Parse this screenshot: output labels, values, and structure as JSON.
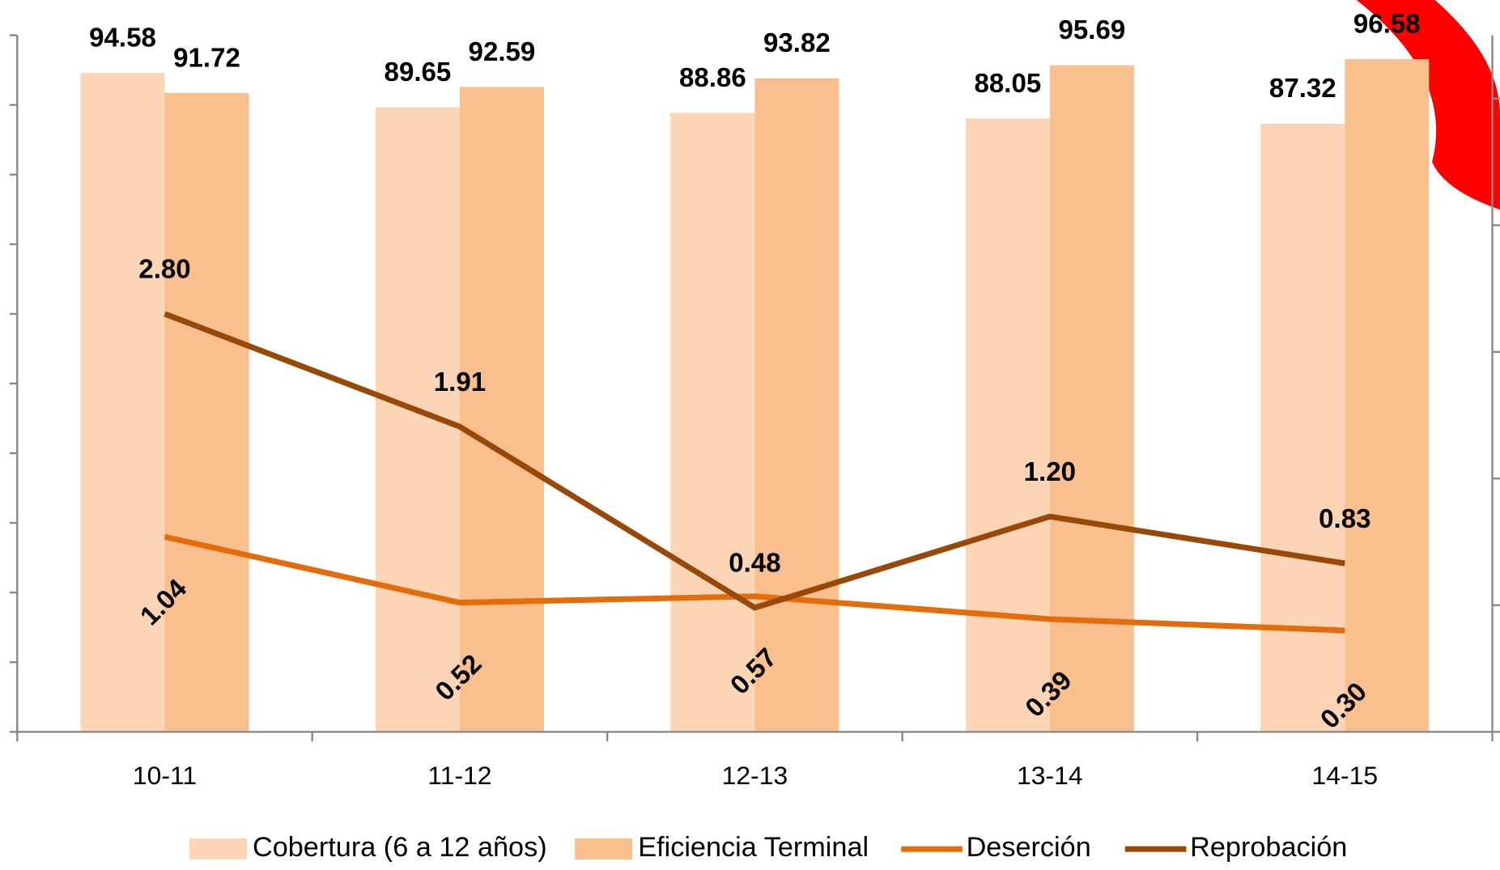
{
  "chart_data": {
    "type": "bar-line",
    "categories": [
      "10-11",
      "11-12",
      "12-13",
      "13-14",
      "14-15"
    ],
    "series": [
      {
        "name": "Cobertura (6 a 12 años)",
        "type": "bar",
        "color": "#fbd5b5",
        "values": [
          94.58,
          89.65,
          88.86,
          88.05,
          87.32
        ]
      },
      {
        "name": "Eficiencia Terminal",
        "type": "bar",
        "color": "#f9bf8f",
        "values": [
          91.72,
          92.59,
          93.82,
          95.69,
          96.58
        ]
      },
      {
        "name": "Deserción",
        "type": "line",
        "axis": "y2",
        "color": "#e46c0a",
        "values": [
          1.04,
          0.52,
          0.57,
          0.39,
          0.3
        ],
        "value_labels": [
          "1.04",
          "0.52",
          "0.57",
          "0.39",
          "0.30"
        ]
      },
      {
        "name": "Reprobación",
        "type": "line",
        "axis": "y2",
        "color": "#984807",
        "values": [
          2.8,
          1.91,
          0.48,
          1.2,
          0.83
        ],
        "value_labels": [
          "2.80",
          "1.91",
          "0.48",
          "1.20",
          "0.83"
        ]
      }
    ],
    "ylim": [
      0,
      100
    ],
    "yticks": [
      0,
      10,
      20,
      30,
      40,
      50,
      60,
      70,
      80,
      90,
      100
    ],
    "y2lim": [
      -0.5,
      5
    ],
    "y2ticks": [
      -0.5,
      0.5,
      1.5,
      2.5,
      3.5,
      4.5
    ]
  }
}
